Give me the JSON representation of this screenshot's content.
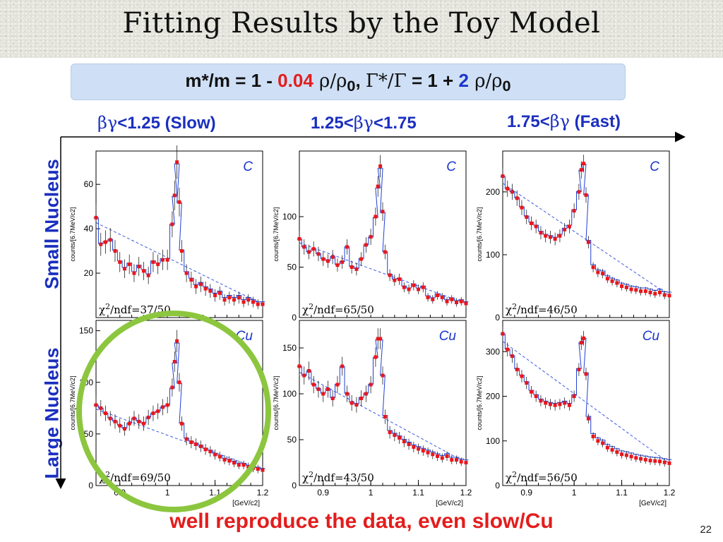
{
  "slide": {
    "title": "Fitting Results by the Toy Model",
    "page_number": "22",
    "footer": "well reproduce the data, even slow/Cu",
    "formula": {
      "lhs": "m*/m = 1 - ",
      "value1": "0.04",
      "ratio1": " ρ/ρ",
      "sub1": "0",
      "sep": ",  ",
      "gamma_ratio": "Γ*/Γ",
      "mid": " = 1 + ",
      "value2": "2",
      "ratio2": " ρ/ρ",
      "sub2": "0"
    },
    "columns": [
      {
        "prefix": "βγ",
        "text": "<1.25 (Slow)"
      },
      {
        "prefix": "1.25<",
        "mid": "βγ",
        "text": "<1.75"
      },
      {
        "prefix": "1.75<",
        "mid": "βγ",
        "text": " (Fast)"
      }
    ],
    "rows": [
      "Small Nucleus",
      "Large Nucleus"
    ],
    "ylabel_prefix": "counts/[6.7MeV/c",
    "ylabel_sup": "2",
    "ylabel_suffix": "]",
    "xunit": "[GeV/c",
    "xunit_sup": "2",
    "xunit_suffix": "]",
    "colors": {
      "title_blue": "#1a2fbf",
      "red": "#e31d1d",
      "green_circle": "#8cc63f",
      "hist_blue": "#1f3fd6",
      "marker_red": "#e8161c"
    }
  },
  "chart_data": [
    {
      "type": "scatter",
      "nucleus": "C",
      "bin": "βγ<1.25 (Slow)",
      "chi2": "/ndf=37/50",
      "xlim": [
        0.85,
        1.2
      ],
      "ylim": [
        0,
        75
      ],
      "yticks": [
        20,
        40,
        60
      ],
      "xticks": [],
      "x": [
        0.85,
        0.86,
        0.87,
        0.88,
        0.89,
        0.9,
        0.91,
        0.92,
        0.93,
        0.94,
        0.95,
        0.96,
        0.97,
        0.98,
        0.99,
        1.0,
        1.01,
        1.015,
        1.02,
        1.025,
        1.03,
        1.04,
        1.05,
        1.06,
        1.07,
        1.08,
        1.09,
        1.1,
        1.11,
        1.12,
        1.13,
        1.14,
        1.15,
        1.16,
        1.17,
        1.18,
        1.19,
        1.2
      ],
      "y": [
        45,
        33,
        34,
        35,
        30,
        25,
        22,
        24,
        20,
        23,
        21,
        19,
        25,
        24,
        26,
        26,
        42,
        55,
        70,
        52,
        30,
        20,
        17,
        14,
        15,
        13,
        12,
        10,
        11,
        8,
        9,
        8,
        9,
        7,
        8,
        7,
        6,
        6
      ]
    },
    {
      "type": "scatter",
      "nucleus": "C",
      "bin": "1.25<βγ<1.75",
      "chi2": "/ndf=65/50",
      "xlim": [
        0.85,
        1.2
      ],
      "ylim": [
        0,
        165
      ],
      "yticks": [
        0,
        50,
        100
      ],
      "xticks": [],
      "x": [
        0.85,
        0.86,
        0.87,
        0.88,
        0.89,
        0.9,
        0.91,
        0.92,
        0.93,
        0.94,
        0.95,
        0.96,
        0.97,
        0.98,
        0.99,
        1.0,
        1.01,
        1.015,
        1.02,
        1.025,
        1.03,
        1.04,
        1.05,
        1.06,
        1.07,
        1.08,
        1.09,
        1.1,
        1.11,
        1.12,
        1.13,
        1.14,
        1.15,
        1.16,
        1.17,
        1.18,
        1.19,
        1.2
      ],
      "y": [
        78,
        70,
        65,
        68,
        63,
        58,
        56,
        60,
        52,
        55,
        70,
        50,
        48,
        58,
        72,
        80,
        100,
        130,
        150,
        105,
        65,
        42,
        37,
        38,
        30,
        28,
        32,
        28,
        30,
        20,
        18,
        22,
        20,
        16,
        18,
        15,
        16,
        14
      ]
    },
    {
      "type": "scatter",
      "nucleus": "C",
      "bin": "1.75<βγ (Fast)",
      "chi2": "/ndf=46/50",
      "xlim": [
        0.85,
        1.2
      ],
      "ylim": [
        0,
        265
      ],
      "yticks": [
        0,
        100,
        200
      ],
      "xticks": [],
      "x": [
        0.85,
        0.86,
        0.87,
        0.88,
        0.89,
        0.9,
        0.91,
        0.92,
        0.93,
        0.94,
        0.95,
        0.96,
        0.97,
        0.98,
        0.99,
        1.0,
        1.01,
        1.015,
        1.02,
        1.025,
        1.03,
        1.04,
        1.05,
        1.06,
        1.07,
        1.08,
        1.09,
        1.1,
        1.11,
        1.12,
        1.13,
        1.14,
        1.15,
        1.16,
        1.17,
        1.18,
        1.19,
        1.2
      ],
      "y": [
        225,
        205,
        200,
        190,
        175,
        160,
        150,
        145,
        135,
        130,
        128,
        125,
        130,
        140,
        145,
        170,
        200,
        235,
        245,
        195,
        120,
        80,
        72,
        70,
        62,
        58,
        55,
        50,
        48,
        45,
        44,
        42,
        42,
        40,
        38,
        40,
        36,
        35
      ]
    },
    {
      "type": "scatter",
      "nucleus": "Cu",
      "bin": "βγ<1.25 (Slow)",
      "chi2": "/ndf=69/50",
      "xlim": [
        0.85,
        1.2
      ],
      "ylim": [
        0,
        160
      ],
      "yticks": [
        0,
        50,
        100,
        150
      ],
      "xticks": [
        0.9,
        1,
        1.1,
        1.2
      ],
      "x": [
        0.85,
        0.86,
        0.87,
        0.88,
        0.89,
        0.9,
        0.91,
        0.92,
        0.93,
        0.94,
        0.95,
        0.96,
        0.97,
        0.98,
        0.99,
        1.0,
        1.01,
        1.015,
        1.02,
        1.025,
        1.03,
        1.04,
        1.05,
        1.06,
        1.07,
        1.08,
        1.09,
        1.1,
        1.11,
        1.12,
        1.13,
        1.14,
        1.15,
        1.16,
        1.17,
        1.18,
        1.19,
        1.2
      ],
      "y": [
        78,
        75,
        70,
        65,
        62,
        58,
        55,
        60,
        65,
        62,
        60,
        66,
        70,
        72,
        76,
        78,
        95,
        120,
        140,
        100,
        60,
        45,
        42,
        40,
        38,
        35,
        33,
        30,
        28,
        25,
        24,
        22,
        20,
        20,
        18,
        17,
        16,
        15
      ]
    },
    {
      "type": "scatter",
      "nucleus": "Cu",
      "bin": "1.25<βγ<1.75",
      "chi2": "/ndf=43/50",
      "xlim": [
        0.85,
        1.2
      ],
      "ylim": [
        0,
        180
      ],
      "yticks": [
        0,
        50,
        100,
        150
      ],
      "xticks": [
        0.9,
        1,
        1.1,
        1.2
      ],
      "x": [
        0.85,
        0.86,
        0.87,
        0.88,
        0.89,
        0.9,
        0.91,
        0.92,
        0.93,
        0.94,
        0.95,
        0.96,
        0.97,
        0.98,
        0.99,
        1.0,
        1.01,
        1.015,
        1.02,
        1.025,
        1.03,
        1.04,
        1.05,
        1.06,
        1.07,
        1.08,
        1.09,
        1.1,
        1.11,
        1.12,
        1.13,
        1.14,
        1.15,
        1.16,
        1.17,
        1.18,
        1.19,
        1.2
      ],
      "y": [
        130,
        120,
        125,
        110,
        105,
        100,
        105,
        95,
        110,
        130,
        100,
        90,
        88,
        95,
        100,
        110,
        140,
        160,
        160,
        120,
        75,
        58,
        55,
        52,
        48,
        45,
        42,
        40,
        38,
        36,
        34,
        32,
        30,
        32,
        28,
        28,
        26,
        25
      ]
    },
    {
      "type": "scatter",
      "nucleus": "Cu",
      "bin": "1.75<βγ (Fast)",
      "chi2": "/ndf=56/50",
      "xlim": [
        0.85,
        1.2
      ],
      "ylim": [
        0,
        370
      ],
      "yticks": [
        0,
        100,
        200,
        300
      ],
      "xticks": [
        0.9,
        1,
        1.1,
        1.2
      ],
      "x": [
        0.85,
        0.86,
        0.87,
        0.88,
        0.89,
        0.9,
        0.91,
        0.92,
        0.93,
        0.94,
        0.95,
        0.96,
        0.97,
        0.98,
        0.99,
        1.0,
        1.01,
        1.015,
        1.02,
        1.025,
        1.03,
        1.04,
        1.05,
        1.06,
        1.07,
        1.08,
        1.09,
        1.1,
        1.11,
        1.12,
        1.13,
        1.14,
        1.15,
        1.16,
        1.17,
        1.18,
        1.19,
        1.2
      ],
      "y": [
        340,
        305,
        290,
        260,
        245,
        230,
        210,
        200,
        190,
        185,
        182,
        180,
        182,
        185,
        180,
        200,
        260,
        320,
        330,
        250,
        150,
        110,
        100,
        95,
        85,
        80,
        75,
        70,
        68,
        65,
        62,
        60,
        58,
        56,
        55,
        54,
        52,
        50
      ]
    }
  ]
}
